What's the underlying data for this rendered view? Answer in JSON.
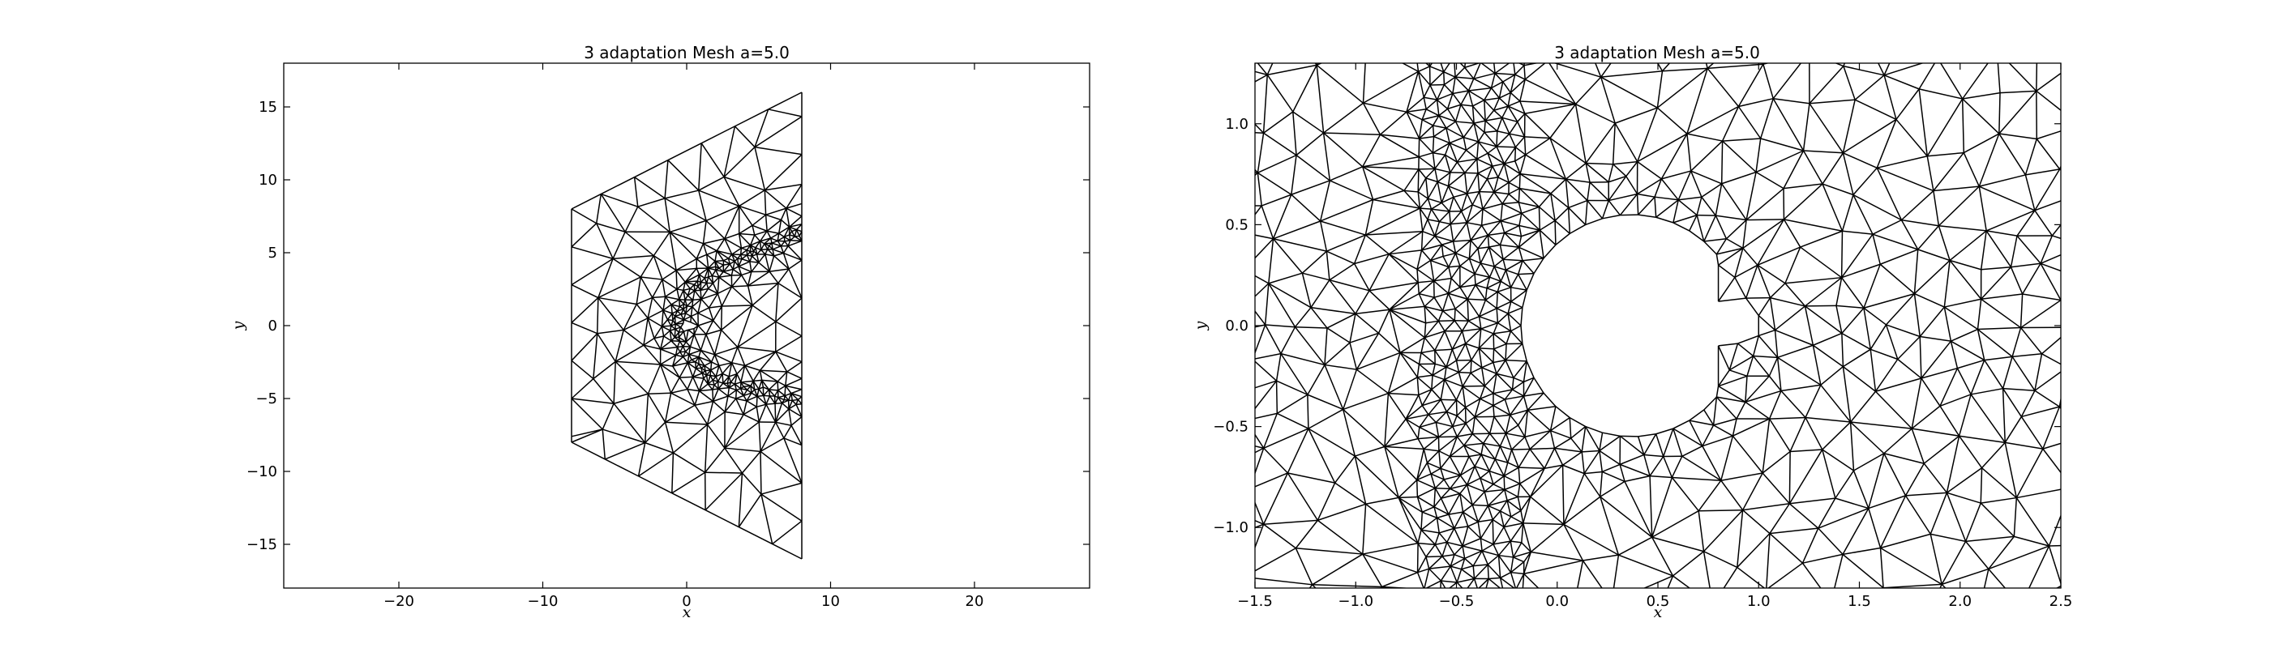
{
  "chart_data": [
    {
      "type": "mesh",
      "title": "3 adaptation Mesh a=5.0",
      "xlabel": "x",
      "ylabel": "y",
      "xlim": [
        -28,
        28
      ],
      "ylim": [
        -18,
        18
      ],
      "xticks": [
        -20,
        -10,
        0,
        10,
        20
      ],
      "yticks": [
        -15,
        -10,
        -5,
        0,
        5,
        10,
        15
      ],
      "xtick_labels": [
        "−20",
        "−10",
        "0",
        "10",
        "20"
      ],
      "ytick_labels": [
        "−15",
        "−10",
        "−5",
        "0",
        "5",
        "10",
        "15"
      ],
      "grid": false,
      "domain_boundary": [
        [
          -8,
          -8
        ],
        [
          8,
          -16
        ],
        [
          8,
          16
        ],
        [
          -8,
          8
        ]
      ],
      "body": [
        [
          0.8,
          0.0
        ],
        [
          -0.2,
          0.4
        ],
        [
          -0.2,
          -0.4
        ]
      ],
      "shock": [
        [
          -1.0,
          0.0
        ],
        [
          0.0,
          2.0
        ],
        [
          2.0,
          3.8
        ],
        [
          4.5,
          5.0
        ],
        [
          8.0,
          6.5
        ],
        [
          0.0,
          -2.0
        ],
        [
          2.0,
          -3.8
        ],
        [
          4.5,
          -4.5
        ],
        [
          8.0,
          -5.2
        ]
      ]
    },
    {
      "type": "mesh",
      "title": "3 adaptation Mesh a=5.0",
      "xlabel": "x",
      "ylabel": "y",
      "xlim": [
        -1.5,
        2.5
      ],
      "ylim": [
        -1.3,
        1.3
      ],
      "xticks": [
        -1.5,
        -1.0,
        -0.5,
        0.0,
        0.5,
        1.0,
        1.5,
        2.0,
        2.5
      ],
      "yticks": [
        -1.0,
        -0.5,
        0.0,
        0.5,
        1.0
      ],
      "xtick_labels": [
        "−1.5",
        "−1.0",
        "−0.5",
        "0.0",
        "0.5",
        "1.0",
        "1.5",
        "2.0",
        "2.5"
      ],
      "ytick_labels": [
        "−1.0",
        "−0.5",
        "0.0",
        "0.5",
        "1.0"
      ],
      "grid": false,
      "body": [
        [
          0.8,
          0.12
        ],
        [
          0.8,
          -0.1
        ],
        [
          -0.18,
          0.0
        ]
      ],
      "body_leading_radius": 0.55,
      "shock_band_x": [
        -0.65,
        -0.2
      ]
    }
  ]
}
